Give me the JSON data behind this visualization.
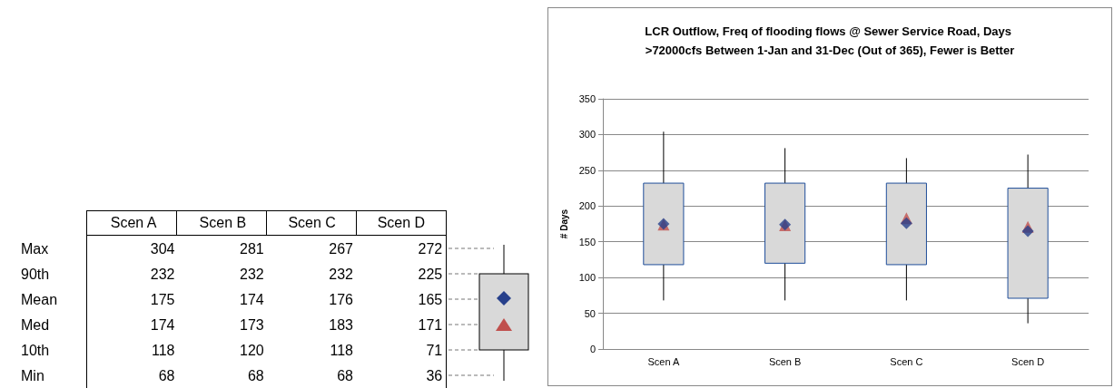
{
  "chart_data": [
    {
      "type": "heatmap",
      "data_labels": true,
      "categories": [
        "Scen A",
        "Scen B",
        "Scen C",
        "Scen D"
      ],
      "y_categories": [
        "Max",
        "90th",
        "Mean",
        "Med",
        "10th",
        "Min"
      ],
      "cells": [
        [
          304,
          281,
          267,
          272
        ],
        [
          232,
          232,
          232,
          225
        ],
        [
          175,
          174,
          176,
          165
        ],
        [
          174,
          173,
          183,
          171
        ],
        [
          118,
          120,
          118,
          71
        ],
        [
          68,
          68,
          68,
          36
        ]
      ]
    },
    {
      "type": "box",
      "title": "LCR Outflow, Freq of flooding flows @ Sewer Service Road, Days >72000cfs Between 1-Jan and 31-Dec (Out of 365), Fewer is Better",
      "ylabel": "# Days",
      "categories": [
        "Scen A",
        "Scen B",
        "Scen C",
        "Scen D"
      ],
      "boxes": [
        {
          "low": 68,
          "q1": 118,
          "median": 174,
          "q3": 232,
          "high": 304,
          "mean": 175
        },
        {
          "low": 68,
          "q1": 120,
          "median": 173,
          "q3": 232,
          "high": 281,
          "mean": 174
        },
        {
          "low": 68,
          "q1": 118,
          "median": 183,
          "q3": 232,
          "high": 267,
          "mean": 176
        },
        {
          "low": 36,
          "q1": 71,
          "median": 171,
          "q3": 225,
          "high": 272,
          "mean": 165
        }
      ],
      "ylim": [
        0,
        350
      ],
      "yticks": [
        0,
        50,
        100,
        150,
        200,
        250,
        300,
        350
      ],
      "grid": "y"
    }
  ]
}
